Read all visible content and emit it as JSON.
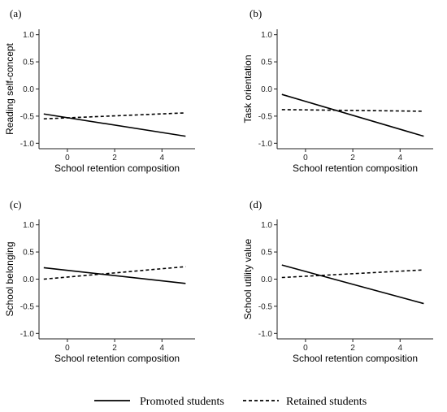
{
  "chart_data": [
    {
      "type": "line",
      "panel_label": "(a)",
      "xlabel": "School retention composition",
      "ylabel": "Reading self-concept",
      "xlim": [
        -1.2,
        5.4
      ],
      "ylim": [
        -1.1,
        1.1
      ],
      "x_ticks": [
        0,
        2,
        4
      ],
      "y_ticks": [
        1.0,
        0.5,
        0.0,
        -0.5,
        -1.0
      ],
      "series": [
        {
          "name": "Promoted students",
          "x": [
            -1,
            5
          ],
          "y": [
            -0.46,
            -0.87
          ]
        },
        {
          "name": "Retained students",
          "x": [
            -1,
            5
          ],
          "y": [
            -0.55,
            -0.44
          ]
        }
      ]
    },
    {
      "type": "line",
      "panel_label": "(b)",
      "xlabel": "School retention composition",
      "ylabel": "Task orientation",
      "xlim": [
        -1.2,
        5.4
      ],
      "ylim": [
        -1.1,
        1.1
      ],
      "x_ticks": [
        0,
        2,
        4
      ],
      "y_ticks": [
        1.0,
        0.5,
        0.0,
        -0.5,
        -1.0
      ],
      "series": [
        {
          "name": "Promoted students",
          "x": [
            -1,
            5
          ],
          "y": [
            -0.1,
            -0.87
          ]
        },
        {
          "name": "Retained students",
          "x": [
            -1,
            5
          ],
          "y": [
            -0.38,
            -0.41
          ]
        }
      ]
    },
    {
      "type": "line",
      "panel_label": "(c)",
      "xlabel": "School retention composition",
      "ylabel": "School belonging",
      "xlim": [
        -1.2,
        5.4
      ],
      "ylim": [
        -1.1,
        1.1
      ],
      "x_ticks": [
        0,
        2,
        4
      ],
      "y_ticks": [
        1.0,
        0.5,
        0.0,
        -0.5,
        -1.0
      ],
      "series": [
        {
          "name": "Promoted students",
          "x": [
            -1,
            5
          ],
          "y": [
            0.21,
            -0.08
          ]
        },
        {
          "name": "Retained students",
          "x": [
            -1,
            5
          ],
          "y": [
            0.0,
            0.23
          ]
        }
      ]
    },
    {
      "type": "line",
      "panel_label": "(d)",
      "xlabel": "School retention composition",
      "ylabel": "School utility value",
      "xlim": [
        -1.2,
        5.4
      ],
      "ylim": [
        -1.1,
        1.1
      ],
      "x_ticks": [
        0,
        2,
        4
      ],
      "y_ticks": [
        1.0,
        0.5,
        0.0,
        -0.5,
        -1.0
      ],
      "series": [
        {
          "name": "Promoted students",
          "x": [
            -1,
            5
          ],
          "y": [
            0.26,
            -0.45
          ]
        },
        {
          "name": "Retained students",
          "x": [
            -1,
            5
          ],
          "y": [
            0.03,
            0.17
          ]
        }
      ]
    }
  ],
  "legend": {
    "placement": "bottom-center",
    "items": [
      {
        "label": "Promoted students",
        "style": "solid"
      },
      {
        "label": "Retained students",
        "style": "dashed"
      }
    ]
  },
  "colors": {
    "line": "#000000",
    "axis": "#222222"
  }
}
